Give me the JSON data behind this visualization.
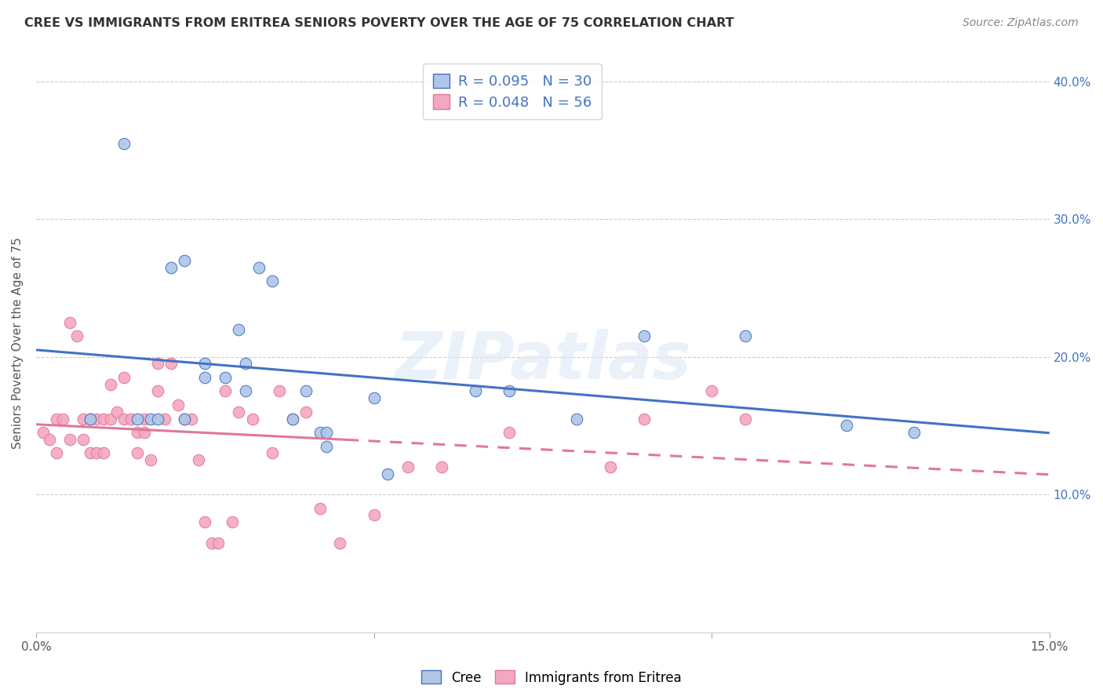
{
  "title": "CREE VS IMMIGRANTS FROM ERITREA SENIORS POVERTY OVER THE AGE OF 75 CORRELATION CHART",
  "source": "Source: ZipAtlas.com",
  "ylabel": "Seniors Poverty Over the Age of 75",
  "xlim": [
    0,
    0.15
  ],
  "ylim": [
    0,
    0.42
  ],
  "cree_R": 0.095,
  "cree_N": 30,
  "eritrea_R": 0.048,
  "eritrea_N": 56,
  "cree_color": "#aec6e8",
  "eritrea_color": "#f4a8bf",
  "cree_line_color": "#4472c4",
  "eritrea_line_color": "#e07898",
  "background_color": "#ffffff",
  "watermark": "ZIPatlas",
  "cree_x": [
    0.008,
    0.013,
    0.015,
    0.017,
    0.018,
    0.02,
    0.022,
    0.022,
    0.025,
    0.025,
    0.028,
    0.03,
    0.031,
    0.031,
    0.033,
    0.035,
    0.038,
    0.04,
    0.042,
    0.043,
    0.043,
    0.05,
    0.052,
    0.065,
    0.07,
    0.08,
    0.09,
    0.105,
    0.12,
    0.13
  ],
  "cree_y": [
    0.155,
    0.355,
    0.155,
    0.155,
    0.155,
    0.265,
    0.27,
    0.155,
    0.195,
    0.185,
    0.185,
    0.22,
    0.195,
    0.175,
    0.265,
    0.255,
    0.155,
    0.175,
    0.145,
    0.145,
    0.135,
    0.17,
    0.115,
    0.175,
    0.175,
    0.155,
    0.215,
    0.215,
    0.15,
    0.145
  ],
  "eritrea_x": [
    0.001,
    0.002,
    0.003,
    0.003,
    0.004,
    0.005,
    0.005,
    0.006,
    0.007,
    0.007,
    0.008,
    0.008,
    0.009,
    0.009,
    0.01,
    0.01,
    0.011,
    0.011,
    0.012,
    0.013,
    0.013,
    0.014,
    0.015,
    0.015,
    0.016,
    0.016,
    0.017,
    0.018,
    0.018,
    0.019,
    0.02,
    0.021,
    0.022,
    0.023,
    0.024,
    0.025,
    0.026,
    0.027,
    0.028,
    0.029,
    0.03,
    0.032,
    0.035,
    0.036,
    0.038,
    0.04,
    0.042,
    0.045,
    0.05,
    0.055,
    0.06,
    0.07,
    0.085,
    0.09,
    0.1,
    0.105
  ],
  "eritrea_y": [
    0.145,
    0.14,
    0.155,
    0.13,
    0.155,
    0.225,
    0.14,
    0.215,
    0.155,
    0.14,
    0.155,
    0.13,
    0.13,
    0.155,
    0.155,
    0.13,
    0.18,
    0.155,
    0.16,
    0.155,
    0.185,
    0.155,
    0.145,
    0.13,
    0.145,
    0.155,
    0.125,
    0.175,
    0.195,
    0.155,
    0.195,
    0.165,
    0.155,
    0.155,
    0.125,
    0.08,
    0.065,
    0.065,
    0.175,
    0.08,
    0.16,
    0.155,
    0.13,
    0.175,
    0.155,
    0.16,
    0.09,
    0.065,
    0.085,
    0.12,
    0.12,
    0.145,
    0.12,
    0.155,
    0.175,
    0.155
  ]
}
